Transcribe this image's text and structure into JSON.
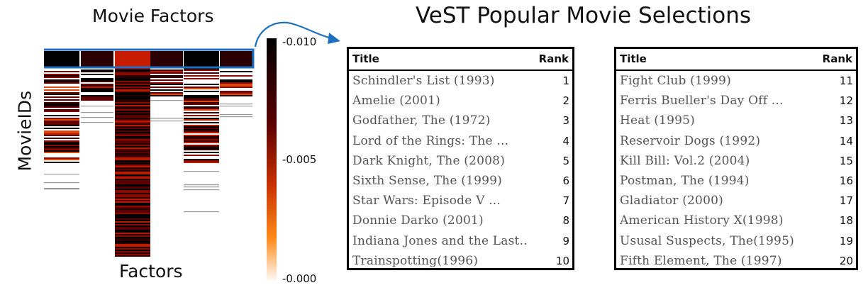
{
  "headings": {
    "heatmap_title": "Movie Factors",
    "selections_title": "VeST Popular Movie Selections",
    "x_label": "Factors",
    "y_label": "MovieIDs"
  },
  "colorbar": {
    "ticks": [
      "-0.010",
      "-0.005",
      "-0.000"
    ],
    "colors": [
      "#000000",
      "#5a0000",
      "#c83000",
      "#ff8a1a",
      "#ffffff"
    ]
  },
  "highlight_color": "#1f6fc0",
  "tables": [
    {
      "header": {
        "title": "Title",
        "rank": "Rank"
      },
      "rows": [
        {
          "title": "Schindler's List (1993)",
          "rank": "1"
        },
        {
          "title": "Amelie (2001)",
          "rank": "2"
        },
        {
          "title": "Godfather, The (1972)",
          "rank": "3"
        },
        {
          "title": "Lord of the Rings: The ...",
          "rank": "4"
        },
        {
          "title": "Dark Knight, The (2008)",
          "rank": "5"
        },
        {
          "title": "Sixth Sense, The (1999)",
          "rank": "6"
        },
        {
          "title": "Star Wars: Episode V ...",
          "rank": "7"
        },
        {
          "title": "Donnie Darko (2001)",
          "rank": "8"
        },
        {
          "title": "Indiana Jones and the Last..",
          "rank": "9"
        },
        {
          "title": "Trainspotting(1996)",
          "rank": "10"
        }
      ]
    },
    {
      "header": {
        "title": "Title",
        "rank": "Rank"
      },
      "rows": [
        {
          "title": "Fight Club (1999)",
          "rank": "11"
        },
        {
          "title": "Ferris Bueller's Day Off ...",
          "rank": "12"
        },
        {
          "title": "Heat (1995)",
          "rank": "13"
        },
        {
          "title": "Reservoir Dogs (1992)",
          "rank": "14"
        },
        {
          "title": "Kill Bill: Vol.2 (2004)",
          "rank": "15"
        },
        {
          "title": "Postman, The (1994)",
          "rank": "16"
        },
        {
          "title": "Gladiator (2000)",
          "rank": "17"
        },
        {
          "title": "American History X(1998)",
          "rank": "18"
        },
        {
          "title": "Ususal Suspects, The(1995)",
          "rank": "19"
        },
        {
          "title": "Fifth Element, The (1997)",
          "rank": "20"
        }
      ]
    }
  ]
}
